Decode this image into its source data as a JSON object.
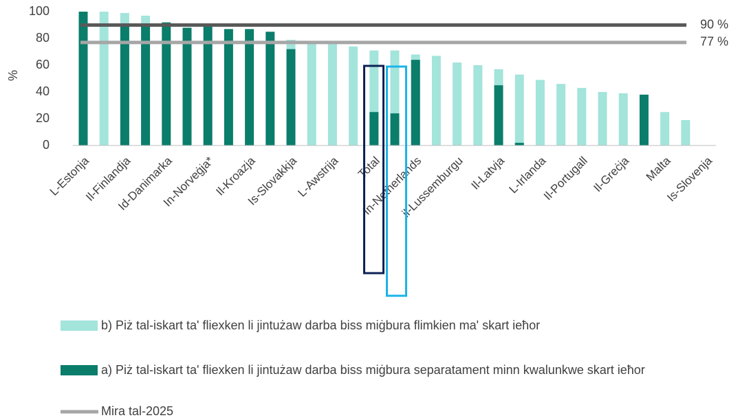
{
  "chart_data": {
    "type": "bar",
    "y_label": "%",
    "categories": [
      "L-Estonja",
      null,
      "Il-Finlandja",
      null,
      "Id-Danimarka",
      null,
      "In-Norveġja*",
      null,
      "Il-Kroazja",
      null,
      "Is-Slovakkja",
      null,
      "L-Awstrija",
      null,
      "Total",
      null,
      "In-Netherlands",
      null,
      "il-Lussemburgu",
      null,
      "Il-Latvja",
      null,
      "L-Irlanda",
      null,
      "Il-Portugall",
      null,
      "Il-Greċja",
      null,
      "Malta",
      null,
      "Is-Slovenja"
    ],
    "series": [
      {
        "name": "b) Piż tal-iskart ta' fliexken li jintużaw darba biss miġbura flimkien ma' skart ieħor",
        "color": "#a3e4db",
        "values": [
          null,
          100,
          99,
          97,
          null,
          null,
          null,
          null,
          null,
          null,
          79,
          76,
          76,
          74,
          71,
          71,
          68,
          67,
          62,
          60,
          57,
          53,
          49,
          46,
          43,
          40,
          39,
          null,
          25,
          19,
          null
        ]
      },
      {
        "name": "a) Piż tal-iskart ta' fliexken li jintużaw darba biss miġbura separatament minn kwalunkwe skart ieħor",
        "color": "#0a7d6b",
        "values": [
          100,
          null,
          91,
          90,
          92,
          88,
          89,
          87,
          87,
          85,
          72,
          null,
          null,
          null,
          25,
          24,
          64,
          null,
          null,
          null,
          45,
          2,
          null,
          null,
          null,
          null,
          null,
          38,
          null,
          null,
          null
        ]
      }
    ],
    "lines": [
      {
        "name": "Mira tal-2025",
        "value": 77,
        "value_label": "77 %",
        "color": "#a6a6a6"
      },
      {
        "value": 90,
        "value_label": "90 %",
        "color": "#595959"
      }
    ],
    "ylim": [
      0,
      100
    ],
    "yticks": [
      0,
      20,
      40,
      60,
      80,
      100
    ]
  }
}
